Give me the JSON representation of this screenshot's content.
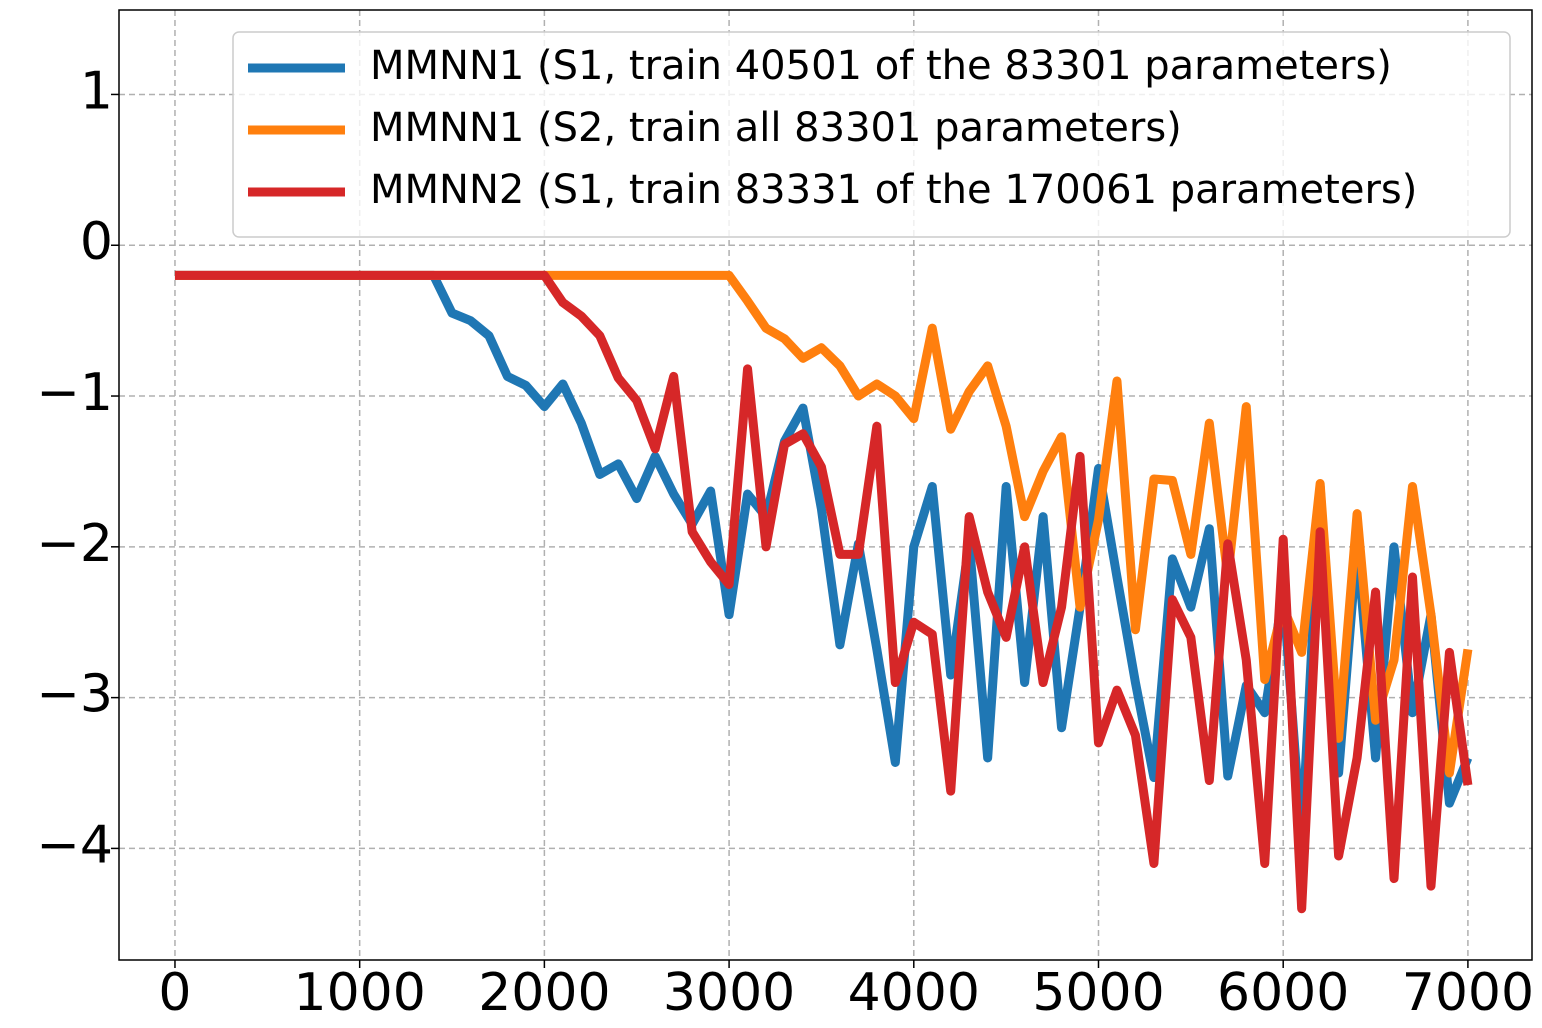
{
  "chart_data": {
    "type": "line",
    "x": [
      0,
      100,
      200,
      300,
      400,
      500,
      600,
      700,
      800,
      900,
      1000,
      1100,
      1200,
      1300,
      1400,
      1500,
      1600,
      1700,
      1800,
      1900,
      2000,
      2100,
      2200,
      2300,
      2400,
      2500,
      2600,
      2700,
      2800,
      2900,
      3000,
      3100,
      3200,
      3300,
      3400,
      3500,
      3600,
      3700,
      3800,
      3900,
      4000,
      4100,
      4200,
      4300,
      4400,
      4500,
      4600,
      4700,
      4800,
      4900,
      5000,
      5100,
      5200,
      5300,
      5400,
      5500,
      5600,
      5700,
      5800,
      5900,
      6000,
      6100,
      6200,
      6300,
      6400,
      6500,
      6600,
      6700,
      6800,
      6900,
      7000
    ],
    "series": [
      {
        "name": "MMNN1 (S1, train 40501 of the 83301 parameters)",
        "color": "#1f77b4",
        "values": [
          -0.2,
          -0.2,
          -0.2,
          -0.2,
          -0.2,
          -0.2,
          -0.2,
          -0.2,
          -0.2,
          -0.2,
          -0.2,
          -0.2,
          -0.2,
          -0.2,
          -0.2,
          -0.45,
          -0.5,
          -0.6,
          -0.87,
          -0.93,
          -1.07,
          -0.92,
          -1.18,
          -1.52,
          -1.45,
          -1.68,
          -1.4,
          -1.65,
          -1.85,
          -1.63,
          -2.45,
          -1.65,
          -1.8,
          -1.3,
          -1.08,
          -1.75,
          -2.65,
          -1.98,
          -2.68,
          -3.43,
          -2.0,
          -1.6,
          -2.85,
          -1.97,
          -3.4,
          -1.6,
          -2.9,
          -1.8,
          -3.2,
          -2.4,
          -1.48,
          -2.2,
          -2.9,
          -3.53,
          -2.08,
          -2.4,
          -1.88,
          -3.52,
          -2.92,
          -3.1,
          -2.3,
          -3.95,
          -1.6,
          -3.5,
          -1.98,
          -3.4,
          -2.0,
          -3.1,
          -2.45,
          -3.7,
          -3.4
        ]
      },
      {
        "name": "MMNN1 (S2, train all 83301 parameters)",
        "color": "#ff7f0e",
        "values": [
          -0.2,
          -0.2,
          -0.2,
          -0.2,
          -0.2,
          -0.2,
          -0.2,
          -0.2,
          -0.2,
          -0.2,
          -0.2,
          -0.2,
          -0.2,
          -0.2,
          -0.2,
          -0.2,
          -0.2,
          -0.2,
          -0.2,
          -0.2,
          -0.2,
          -0.2,
          -0.2,
          -0.2,
          -0.2,
          -0.2,
          -0.2,
          -0.2,
          -0.2,
          -0.2,
          -0.2,
          -0.37,
          -0.55,
          -0.62,
          -0.75,
          -0.68,
          -0.8,
          -1.0,
          -0.92,
          -1.0,
          -1.15,
          -0.55,
          -1.22,
          -0.97,
          -0.8,
          -1.2,
          -1.8,
          -1.5,
          -1.27,
          -2.4,
          -1.82,
          -0.9,
          -2.55,
          -1.55,
          -1.56,
          -2.05,
          -1.18,
          -2.2,
          -1.07,
          -2.88,
          -2.4,
          -2.7,
          -1.58,
          -3.27,
          -1.78,
          -3.15,
          -2.75,
          -1.6,
          -2.45,
          -3.5,
          -2.68
        ]
      },
      {
        "name": "MMNN2 (S1, train 83331 of the 170061 parameters)",
        "color": "#d62728",
        "values": [
          -0.2,
          -0.2,
          -0.2,
          -0.2,
          -0.2,
          -0.2,
          -0.2,
          -0.2,
          -0.2,
          -0.2,
          -0.2,
          -0.2,
          -0.2,
          -0.2,
          -0.2,
          -0.2,
          -0.2,
          -0.2,
          -0.2,
          -0.2,
          -0.2,
          -0.38,
          -0.47,
          -0.6,
          -0.88,
          -1.03,
          -1.35,
          -0.87,
          -1.9,
          -2.1,
          -2.25,
          -0.82,
          -2.0,
          -1.32,
          -1.25,
          -1.47,
          -2.05,
          -2.05,
          -1.2,
          -2.9,
          -2.5,
          -2.58,
          -3.62,
          -1.8,
          -2.3,
          -2.6,
          -2.0,
          -2.9,
          -2.4,
          -1.4,
          -3.3,
          -2.95,
          -3.25,
          -4.1,
          -2.35,
          -2.6,
          -3.55,
          -1.98,
          -2.75,
          -4.1,
          -1.95,
          -4.4,
          -1.9,
          -4.05,
          -3.4,
          -2.3,
          -4.2,
          -2.2,
          -4.25,
          -2.7,
          -3.58
        ]
      }
    ],
    "xlim": [
      -303,
      7347
    ],
    "ylim": [
      -4.74,
      1.56
    ],
    "xticks": [
      0,
      1000,
      2000,
      3000,
      4000,
      5000,
      6000,
      7000
    ],
    "yticks": [
      {
        "value": -4,
        "label": "−4"
      },
      {
        "value": -3,
        "label": "−3"
      },
      {
        "value": -2,
        "label": "−2"
      },
      {
        "value": -1,
        "label": "−1"
      },
      0,
      1
    ],
    "grid": true,
    "legend": "upper right"
  }
}
